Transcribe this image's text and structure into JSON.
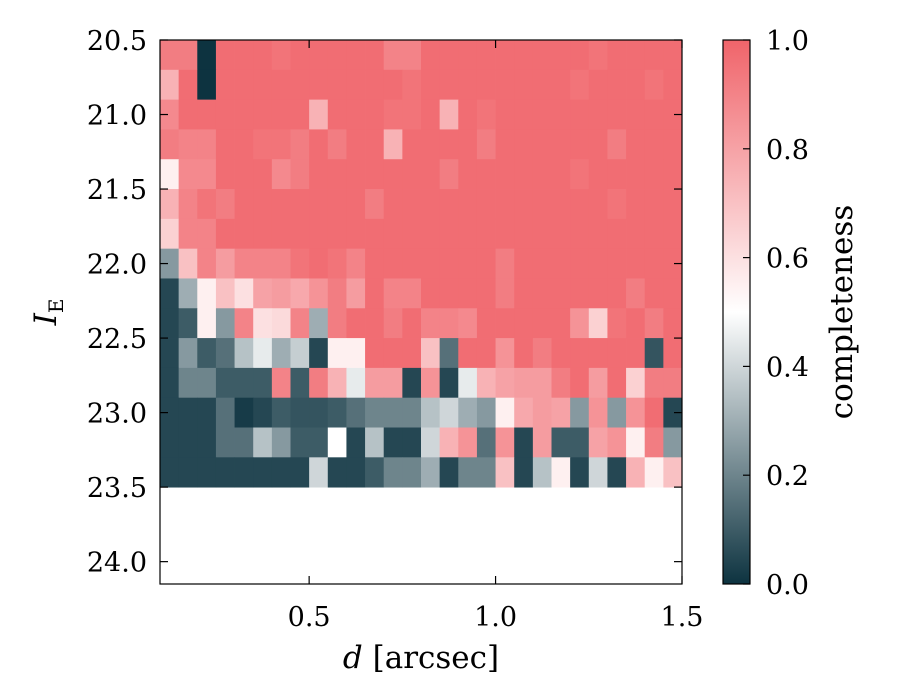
{
  "chart_data": {
    "type": "heatmap",
    "x_axis": {
      "label_var": "d",
      "label_unit": "[arcsec]",
      "range": [
        0.1,
        1.5
      ],
      "ticks": [
        "0.5",
        "1.0",
        "1.5"
      ],
      "tick_values": [
        0.5,
        1.0,
        1.5
      ]
    },
    "y_axis": {
      "label_var": "I",
      "label_sub": "E",
      "range": [
        20.5,
        24.15
      ],
      "inverted": true,
      "ticks": [
        "20.5",
        "21.0",
        "21.5",
        "22.0",
        "22.5",
        "23.0",
        "23.5",
        "24.0"
      ],
      "tick_values": [
        20.5,
        21.0,
        21.5,
        22.0,
        22.5,
        23.0,
        23.5,
        24.0
      ]
    },
    "colorbar": {
      "label": "completeness",
      "range": [
        0.0,
        1.0
      ],
      "ticks": [
        "0.0",
        "0.2",
        "0.4",
        "0.6",
        "0.8",
        "1.0"
      ],
      "tick_values": [
        0.0,
        0.2,
        0.4,
        0.6,
        0.8,
        1.0
      ],
      "colors": [
        "#0d3340",
        "#ffffff",
        "#f0646a"
      ]
    },
    "grid": false,
    "cell_rows_y_start": 20.5,
    "cell_rows_y_step": 0.2,
    "cell_cols_x_start": 0.1,
    "cell_cols_x_step": 0.05,
    "values": [
      [
        0.92,
        0.92,
        0.0,
        0.97,
        0.97,
        0.97,
        0.95,
        0.97,
        0.97,
        0.97,
        0.97,
        0.97,
        0.9,
        0.9,
        0.97,
        0.97,
        0.97,
        0.97,
        0.97,
        0.97,
        0.97,
        0.97,
        0.97,
        0.95,
        0.97,
        0.97,
        0.97,
        0.97
      ],
      [
        0.75,
        0.97,
        0.0,
        0.97,
        0.97,
        0.97,
        0.97,
        0.97,
        0.97,
        0.97,
        0.97,
        0.97,
        0.97,
        0.95,
        0.97,
        0.97,
        0.97,
        0.97,
        0.97,
        0.97,
        0.97,
        0.97,
        0.95,
        0.97,
        0.97,
        0.97,
        0.95,
        0.97
      ],
      [
        0.88,
        0.97,
        0.97,
        0.97,
        0.97,
        0.97,
        0.97,
        0.97,
        0.75,
        0.97,
        0.97,
        0.97,
        0.95,
        0.95,
        0.97,
        0.75,
        0.97,
        0.95,
        0.97,
        0.97,
        0.97,
        0.97,
        0.97,
        0.97,
        0.97,
        0.97,
        0.97,
        0.97
      ],
      [
        0.92,
        0.9,
        0.9,
        0.97,
        0.97,
        0.95,
        0.95,
        0.92,
        0.97,
        0.92,
        0.97,
        0.97,
        0.75,
        0.97,
        0.97,
        0.97,
        0.97,
        0.92,
        0.97,
        0.97,
        0.97,
        0.97,
        0.97,
        0.97,
        0.92,
        0.97,
        0.97,
        0.97
      ],
      [
        0.55,
        0.88,
        0.88,
        0.97,
        0.97,
        0.97,
        0.88,
        0.92,
        0.97,
        0.97,
        0.97,
        0.97,
        0.97,
        0.97,
        0.97,
        0.92,
        0.97,
        0.97,
        0.97,
        0.97,
        0.97,
        0.97,
        0.95,
        0.97,
        0.97,
        0.97,
        0.97,
        0.97
      ],
      [
        0.75,
        0.9,
        0.95,
        0.92,
        0.97,
        0.97,
        0.97,
        0.97,
        0.97,
        0.97,
        0.97,
        0.92,
        0.97,
        0.97,
        0.97,
        0.97,
        0.97,
        0.97,
        0.97,
        0.97,
        0.97,
        0.97,
        0.97,
        0.97,
        0.95,
        0.97,
        0.97,
        0.97
      ],
      [
        0.65,
        0.9,
        0.9,
        0.97,
        0.97,
        0.97,
        0.97,
        0.97,
        0.97,
        0.97,
        0.97,
        0.97,
        0.97,
        0.97,
        0.97,
        0.97,
        0.97,
        0.97,
        0.97,
        0.97,
        0.97,
        0.97,
        0.97,
        0.97,
        0.97,
        0.97,
        0.97,
        0.97
      ],
      [
        0.25,
        0.7,
        0.9,
        0.82,
        0.9,
        0.9,
        0.9,
        0.95,
        0.97,
        0.95,
        0.9,
        0.97,
        0.97,
        0.97,
        0.97,
        0.97,
        0.97,
        0.97,
        0.92,
        0.97,
        0.97,
        0.97,
        0.97,
        0.97,
        0.97,
        0.97,
        0.97,
        0.97
      ],
      [
        0.05,
        0.3,
        0.55,
        0.7,
        0.6,
        0.8,
        0.82,
        0.78,
        0.85,
        0.92,
        0.82,
        0.97,
        0.9,
        0.9,
        0.97,
        0.97,
        0.97,
        0.97,
        0.92,
        0.97,
        0.97,
        0.97,
        0.97,
        0.97,
        0.97,
        0.92,
        0.97,
        0.97
      ],
      [
        0.05,
        0.1,
        0.55,
        0.25,
        0.9,
        0.6,
        0.62,
        0.9,
        0.3,
        0.92,
        0.97,
        0.97,
        0.92,
        0.97,
        0.9,
        0.9,
        0.88,
        0.97,
        0.97,
        0.97,
        0.97,
        0.97,
        0.85,
        0.65,
        0.95,
        0.97,
        0.92,
        0.97
      ],
      [
        0.05,
        0.25,
        0.1,
        0.15,
        0.35,
        0.45,
        0.3,
        0.38,
        0.05,
        0.55,
        0.55,
        0.97,
        0.97,
        0.97,
        0.7,
        0.15,
        0.97,
        0.97,
        0.85,
        0.97,
        0.92,
        0.97,
        0.97,
        0.97,
        0.97,
        0.97,
        0.08,
        0.97
      ],
      [
        0.05,
        0.2,
        0.2,
        0.1,
        0.1,
        0.1,
        0.9,
        0.1,
        0.92,
        0.75,
        0.45,
        0.82,
        0.82,
        0.05,
        0.85,
        0.05,
        0.45,
        0.75,
        0.8,
        0.82,
        0.82,
        0.92,
        0.97,
        0.82,
        0.97,
        0.65,
        0.92,
        0.92
      ],
      [
        0.05,
        0.05,
        0.05,
        0.15,
        0.02,
        0.05,
        0.1,
        0.08,
        0.08,
        0.1,
        0.15,
        0.2,
        0.2,
        0.2,
        0.35,
        0.4,
        0.3,
        0.25,
        0.55,
        0.78,
        0.82,
        0.8,
        0.25,
        0.85,
        0.25,
        0.85,
        0.97,
        0.05
      ],
      [
        0.05,
        0.05,
        0.05,
        0.15,
        0.15,
        0.35,
        0.25,
        0.1,
        0.1,
        0.5,
        0.05,
        0.35,
        0.05,
        0.05,
        0.4,
        0.75,
        0.85,
        0.15,
        0.85,
        0.05,
        0.82,
        0.1,
        0.1,
        0.8,
        0.85,
        0.55,
        0.92,
        0.25
      ],
      [
        0.05,
        0.05,
        0.05,
        0.05,
        0.05,
        0.05,
        0.05,
        0.05,
        0.4,
        0.05,
        0.05,
        0.1,
        0.2,
        0.2,
        0.3,
        0.05,
        0.2,
        0.2,
        0.7,
        0.05,
        0.35,
        0.55,
        0.05,
        0.4,
        0.05,
        0.75,
        0.55,
        0.7
      ]
    ]
  }
}
